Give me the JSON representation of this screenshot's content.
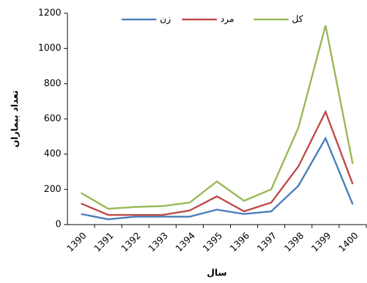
{
  "chart_data": {
    "type": "line",
    "x_label": "سال",
    "y_label": "تعداد بیماران",
    "categories": [
      "1390",
      "1391",
      "1392",
      "1393",
      "1394",
      "1395",
      "1396",
      "1397",
      "1398",
      "1399",
      "1400"
    ],
    "series": [
      {
        "name": "زن",
        "color": "#4a7ebb",
        "values": [
          60,
          30,
          45,
          45,
          45,
          85,
          60,
          75,
          220,
          490,
          115
        ]
      },
      {
        "name": "مرد",
        "color": "#be4b48",
        "values": [
          120,
          55,
          55,
          55,
          80,
          160,
          75,
          125,
          330,
          640,
          230
        ]
      },
      {
        "name": "کل",
        "color": "#98b954",
        "values": [
          180,
          90,
          100,
          105,
          125,
          245,
          135,
          200,
          550,
          1130,
          345
        ]
      }
    ],
    "ylim": [
      0,
      1200
    ],
    "yticks": [
      0,
      200,
      400,
      600,
      800,
      1000,
      1200
    ],
    "grid": false
  }
}
